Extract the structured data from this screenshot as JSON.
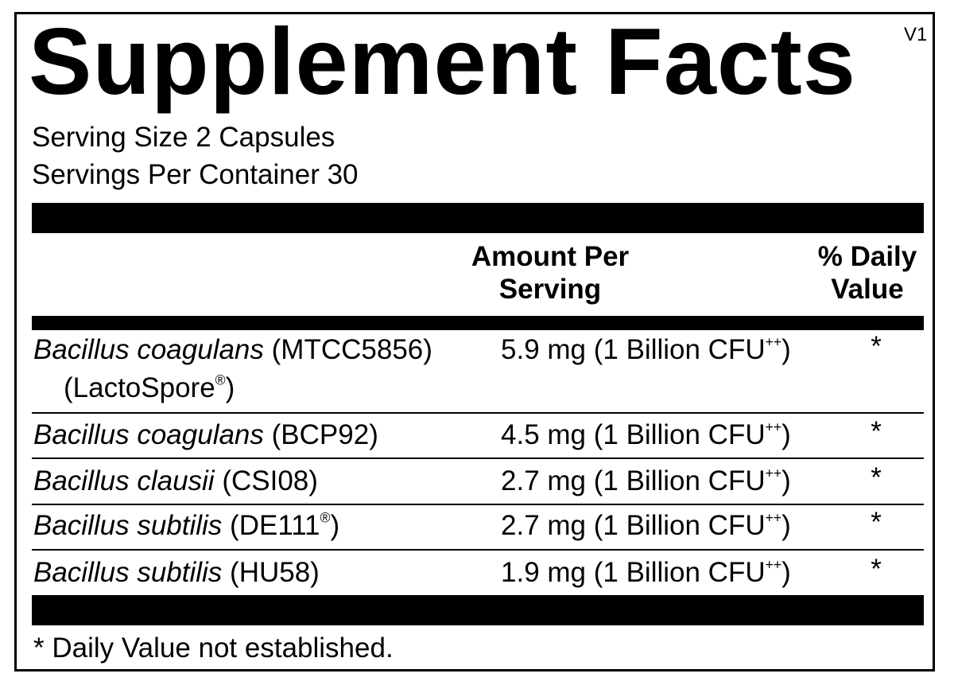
{
  "header": {
    "title": "Supplement Facts",
    "version": "V1",
    "serving_size": "Serving Size 2 Capsules",
    "servings_per_container": "Servings Per Container 30"
  },
  "table": {
    "columns": {
      "amount": [
        "Amount Per",
        "Serving"
      ],
      "daily_value": [
        "% Daily",
        "Value"
      ]
    },
    "rows": [
      {
        "name": "Bacillus coagulans",
        "strain": "(MTCC5856)",
        "note": "(LactoSpore",
        "note_sup": "®",
        "note_end": ")",
        "amount": "5.9 mg (1 Billion CFU",
        "amount_sup": "++",
        "amount_end": ")",
        "daily_value": "*"
      },
      {
        "name": "Bacillus coagulans",
        "strain": "(BCP92)",
        "amount": "4.5 mg (1 Billion CFU",
        "amount_sup": "++",
        "amount_end": ")",
        "daily_value": "*"
      },
      {
        "name": "Bacillus clausii",
        "strain": "(CSI08)",
        "amount": "2.7 mg (1 Billion CFU",
        "amount_sup": "++",
        "amount_end": ")",
        "daily_value": "*"
      },
      {
        "name": "Bacillus subtilis",
        "strain": "(DE111",
        "strain_sup": "®",
        "strain_end": ")",
        "amount": "2.7 mg (1 Billion CFU",
        "amount_sup": "++",
        "amount_end": ")",
        "daily_value": "*"
      },
      {
        "name": "Bacillus subtilis",
        "strain": "(HU58)",
        "amount": "1.9 mg (1 Billion CFU",
        "amount_sup": "++",
        "amount_end": ")",
        "daily_value": "*"
      }
    ]
  },
  "footer": {
    "note": "* Daily Value not established."
  }
}
